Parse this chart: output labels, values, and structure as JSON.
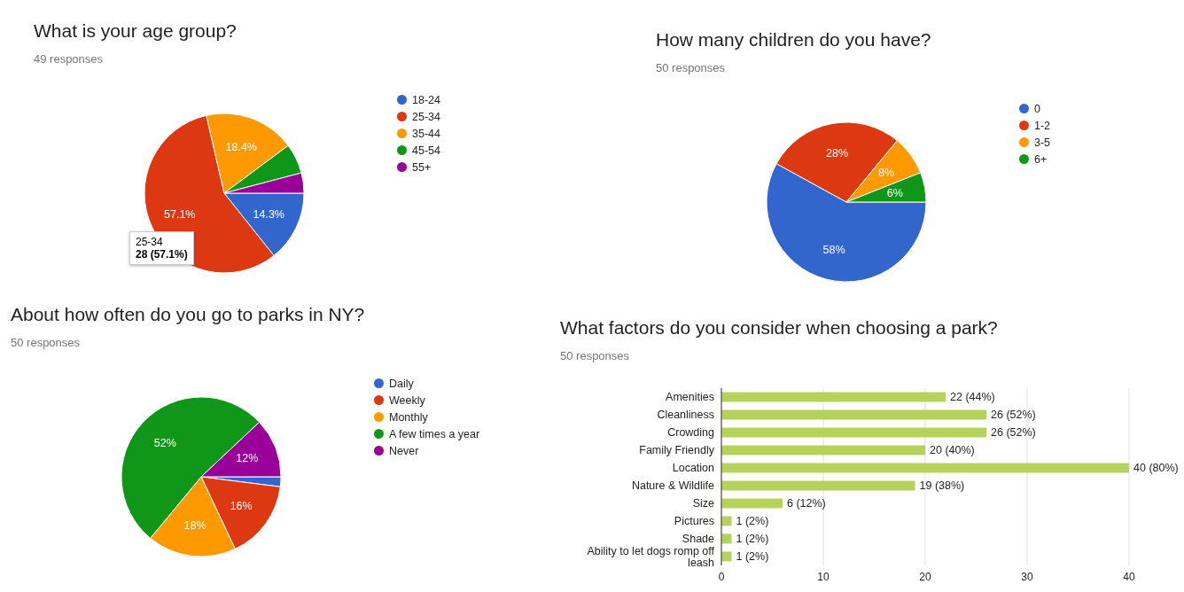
{
  "chart_data": [
    {
      "type": "pie",
      "title": "What is your age group?",
      "subtitle": "49 responses",
      "categories": [
        "18-24",
        "25-34",
        "35-44",
        "45-54",
        "55+"
      ],
      "values": [
        14.3,
        57.1,
        18.4,
        6.1,
        4.1
      ],
      "colors": [
        "#3366cc",
        "#dc3912",
        "#ff9900",
        "#109618",
        "#990099"
      ],
      "value_labels": [
        "14.3%",
        "57.1%",
        "18.4%",
        null,
        null
      ],
      "legend": "right",
      "annotations": [
        "25-34",
        "28 (57.1%)"
      ]
    },
    {
      "type": "pie",
      "title": "How many children do you have?",
      "subtitle": "50 responses",
      "categories": [
        "0",
        "1-2",
        "3-5",
        "6+"
      ],
      "values": [
        58,
        28,
        8,
        6
      ],
      "colors": [
        "#3366cc",
        "#dc3912",
        "#ff9900",
        "#109618"
      ],
      "value_labels": [
        "58%",
        "28%",
        "8%",
        "6%"
      ],
      "legend": "right"
    },
    {
      "type": "pie",
      "title": "About how often do you go to parks in NY?",
      "subtitle": "50 responses",
      "categories": [
        "Daily",
        "Weekly",
        "Monthly",
        "A few times a year",
        "Never"
      ],
      "values": [
        2,
        16,
        18,
        52,
        12
      ],
      "colors": [
        "#3366cc",
        "#dc3912",
        "#ff9900",
        "#109618",
        "#990099"
      ],
      "value_labels": [
        null,
        "16%",
        "18%",
        "52%",
        "12%"
      ],
      "legend": "right"
    },
    {
      "type": "bar",
      "orientation": "horizontal",
      "title": "What factors do you consider when choosing a park?",
      "subtitle": "50 responses",
      "categories": [
        "Amenities",
        "Cleanliness",
        "Crowding",
        "Family Friendly",
        "Location",
        "Nature & Wildlife",
        "Size",
        "Pictures",
        "Shade",
        "Ability to let dogs romp off leash"
      ],
      "values": [
        22,
        26,
        26,
        20,
        40,
        19,
        6,
        1,
        1,
        1
      ],
      "color": "#b6d25c",
      "value_labels": [
        "22 (44%)",
        "26 (52%)",
        "26 (52%)",
        "20 (40%)",
        "40 (80%)",
        "19 (38%)",
        "6 (12%)",
        "1 (2%)",
        "1 (2%)",
        "1 (2%)"
      ],
      "xlim": [
        0,
        40
      ],
      "xticks": [
        0,
        10,
        20,
        30,
        40
      ],
      "grid": "x"
    }
  ]
}
